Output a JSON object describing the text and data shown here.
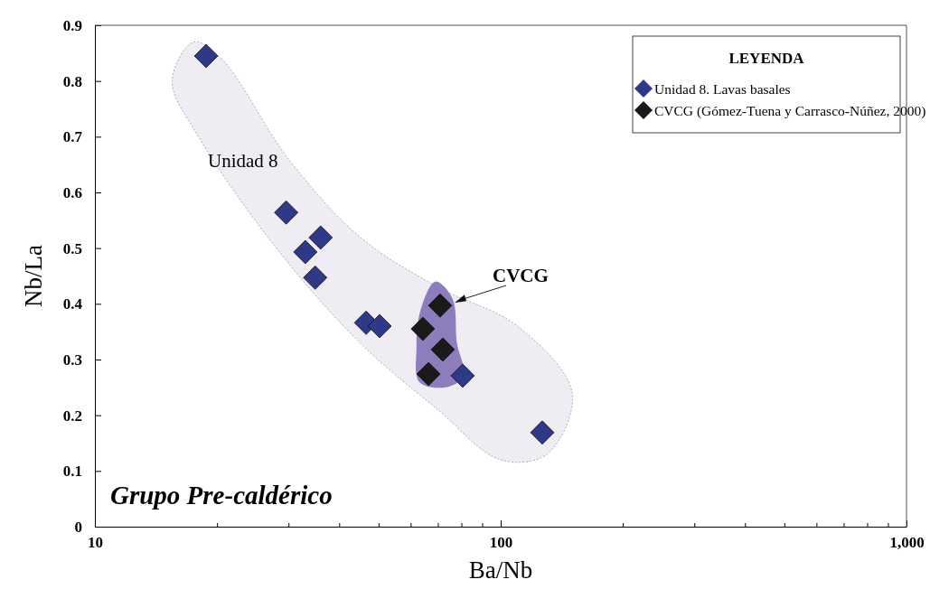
{
  "chart_data": {
    "type": "scatter",
    "xlabel": "Ba/Nb",
    "ylabel": "Nb/La",
    "log": "x",
    "xlim": [
      10,
      1000
    ],
    "ylim": [
      0,
      0.9
    ],
    "xticks": [
      10,
      {
        "value": 20,
        "label": null
      },
      {
        "value": 30,
        "label": null
      },
      {
        "value": 40,
        "label": null
      },
      {
        "value": 50,
        "label": null
      },
      {
        "value": 60,
        "label": null
      },
      {
        "value": 70,
        "label": null
      },
      {
        "value": 80,
        "label": null
      },
      {
        "value": 90,
        "label": null
      },
      100,
      {
        "value": 200,
        "label": null
      },
      {
        "value": 300,
        "label": null
      },
      {
        "value": 400,
        "label": null
      },
      {
        "value": 500,
        "label": null
      },
      {
        "value": 600,
        "label": null
      },
      {
        "value": 700,
        "label": null
      },
      {
        "value": 800,
        "label": null
      },
      {
        "value": 900,
        "label": null
      },
      {
        "value": 1000,
        "label": "1,000"
      }
    ],
    "yticks": [
      0,
      0.1,
      0.2,
      0.3,
      0.4,
      0.5,
      0.6,
      0.7,
      0.8,
      0.9
    ],
    "grid": false,
    "legend": "top right",
    "legend_title": "LEYENDA",
    "marker": "diamond",
    "series": [
      {
        "name": "Unidad 8. Lavas basales",
        "color": "#2e3a87",
        "x": [
          18.8,
          29.6,
          36.0,
          33.0,
          34.9,
          46.6,
          50.3,
          80.6,
          126.6
        ],
        "values": [
          0.845,
          0.564,
          0.519,
          0.493,
          0.447,
          0.366,
          0.36,
          0.271,
          0.169
        ]
      },
      {
        "name": "CVCG (Gómez-Tuena y Carrasco-Núñez, 2000)",
        "color": "#1a1a1a",
        "x": [
          70.9,
          64.3,
          72.0,
          66.4
        ],
        "values": [
          0.397,
          0.355,
          0.318,
          0.274
        ]
      }
    ],
    "annotations": [
      "Unidad 8",
      {
        "text": "CVCG",
        "x": 70.9,
        "y": 0.397
      },
      "Grupo Pre-caldérico"
    ]
  }
}
